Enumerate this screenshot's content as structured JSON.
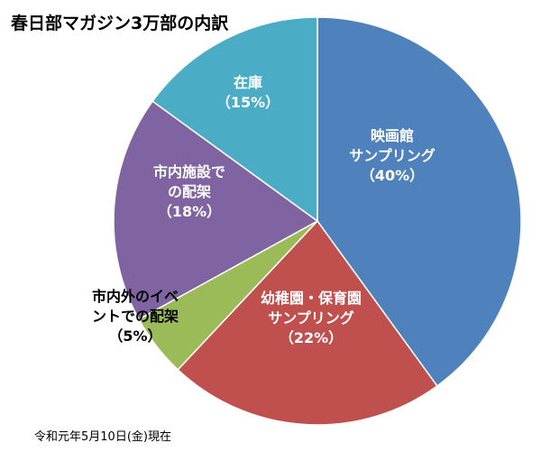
{
  "chart_data": {
    "type": "pie",
    "title": "春日部マガジン3万部の内訳",
    "note": "令和元年5月10日(金)現在",
    "slices": [
      {
        "name": "映画館サンプリング",
        "label_lines": [
          "映画館",
          "サンプリング",
          "（40%）"
        ],
        "value": 40,
        "color": "#4f81bd",
        "label_color": "#ffffff"
      },
      {
        "name": "幼稚園・保育園サンプリング",
        "label_lines": [
          "幼稚園・保育園",
          "サンプリング",
          "（22%）"
        ],
        "value": 22,
        "color": "#c0504d",
        "label_color": "#ffffff"
      },
      {
        "name": "市内外のイベントでの配架",
        "label_lines": [
          "市内外のイベ",
          "ントでの配架",
          "（5%）"
        ],
        "value": 5,
        "color": "#9bbb59",
        "label_color": "#000000"
      },
      {
        "name": "市内施設での配架",
        "label_lines": [
          "市内施設で",
          "の配架",
          "（18%）"
        ],
        "value": 18,
        "color": "#8064a2",
        "label_color": "#ffffff"
      },
      {
        "name": "在庫",
        "label_lines": [
          "在庫",
          "（15%）"
        ],
        "value": 15,
        "color": "#4bacc6",
        "label_color": "#ffffff"
      }
    ]
  }
}
